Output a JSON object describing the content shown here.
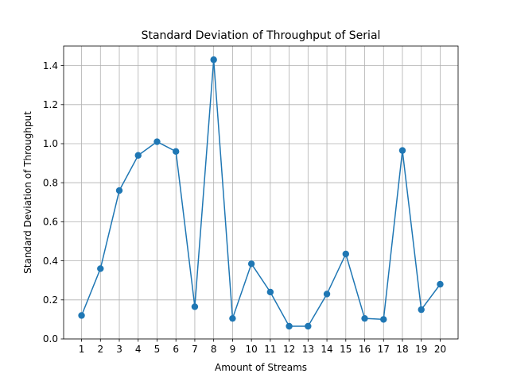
{
  "chart_data": {
    "type": "line",
    "title": "Standard Deviation of Throughput of Serial",
    "xlabel": "Amount of Streams",
    "ylabel": "Standard Deviation of Throughput",
    "x": [
      1,
      2,
      3,
      4,
      5,
      6,
      7,
      8,
      9,
      10,
      11,
      12,
      13,
      14,
      15,
      16,
      17,
      18,
      19,
      20
    ],
    "xlim": [
      0.05,
      20.95
    ],
    "ylim": [
      0,
      1.5
    ],
    "xticks": [
      "1",
      "2",
      "3",
      "4",
      "5",
      "6",
      "7",
      "8",
      "9",
      "10",
      "11",
      "12",
      "13",
      "14",
      "15",
      "16",
      "17",
      "18",
      "19",
      "20"
    ],
    "yticks": [
      "0.0",
      "0.2",
      "0.4",
      "0.6",
      "0.8",
      "1.0",
      "1.2",
      "1.4"
    ],
    "ytick_values": [
      0,
      0.2,
      0.4,
      0.6,
      0.8,
      1.0,
      1.2,
      1.4
    ],
    "grid": true,
    "series": [
      {
        "color": "#1f77b4",
        "marker": "circle",
        "values": [
          0.12,
          0.36,
          0.76,
          0.94,
          1.01,
          0.96,
          0.165,
          1.43,
          0.105,
          0.385,
          0.24,
          0.065,
          0.065,
          0.23,
          0.435,
          0.105,
          0.1,
          0.965,
          0.15,
          0.28
        ]
      }
    ]
  }
}
